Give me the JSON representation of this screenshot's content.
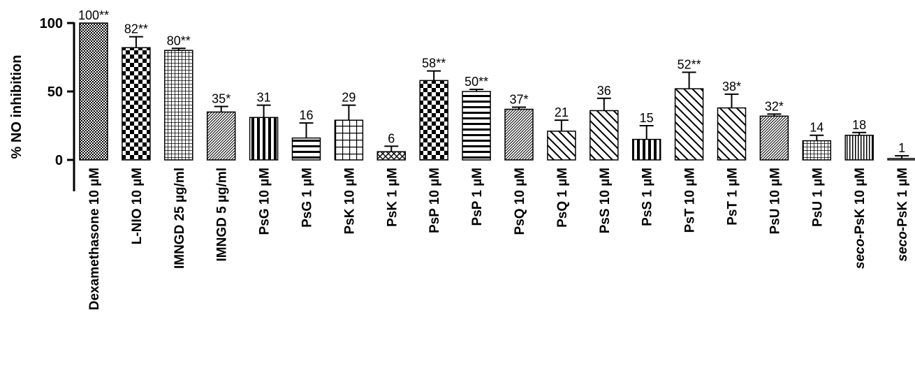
{
  "chart_data": {
    "type": "bar",
    "ylabel": "% NO inhibition",
    "xlabel": "",
    "title": "",
    "ylim": [
      -22,
      103
    ],
    "yticks": [
      0,
      50,
      100
    ],
    "grid": false,
    "legend": "none",
    "categories": [
      {
        "text": "Dexamethasone  10 µM",
        "italic_prefix": ""
      },
      {
        "text": "L-NIO  10 µM",
        "italic_prefix": ""
      },
      {
        "text": "IMNGD 25  µg/ml",
        "italic_prefix": ""
      },
      {
        "text": "IMNGD  5 µg/ml",
        "italic_prefix": ""
      },
      {
        "text": "PsG 10 µM",
        "italic_prefix": ""
      },
      {
        "text": "PsG  1 µM",
        "italic_prefix": ""
      },
      {
        "text": "PsK 10 µM",
        "italic_prefix": ""
      },
      {
        "text": "PsK  1 µM",
        "italic_prefix": ""
      },
      {
        "text": "PsP 10 µM",
        "italic_prefix": ""
      },
      {
        "text": "PsP  1 µM",
        "italic_prefix": ""
      },
      {
        "text": "PsQ 10 µM",
        "italic_prefix": ""
      },
      {
        "text": "PsQ  1 µM",
        "italic_prefix": ""
      },
      {
        "text": "PsS 10 µM",
        "italic_prefix": ""
      },
      {
        "text": "PsS  1 µM",
        "italic_prefix": ""
      },
      {
        "text": "PsT 10 µM",
        "italic_prefix": ""
      },
      {
        "text": "PsT  1 µM",
        "italic_prefix": ""
      },
      {
        "text": "PsU 10 µM",
        "italic_prefix": ""
      },
      {
        "text": "PsU  1 µM",
        "italic_prefix": ""
      },
      {
        "text": "-PsK 10 µM",
        "italic_prefix": "seco"
      },
      {
        "text": "-PsK  1 µM",
        "italic_prefix": "seco"
      }
    ],
    "values": [
      100,
      82,
      80,
      35,
      31,
      16,
      29,
      6,
      58,
      50,
      37,
      21,
      36,
      15,
      52,
      38,
      32,
      14,
      18,
      1
    ],
    "errors": [
      0,
      8,
      1.5,
      4,
      9,
      11,
      11,
      4,
      7,
      1.5,
      1.5,
      8,
      9,
      10,
      12,
      10,
      1.5,
      4,
      2,
      2
    ],
    "data_labels": [
      "100**",
      "82**",
      "80**",
      "35*",
      "31",
      "16",
      "29",
      "6",
      "58**",
      "50**",
      "37*",
      "21",
      "36",
      "15",
      "52**",
      "38*",
      "32*",
      "14",
      "18",
      "1"
    ],
    "patterns": [
      "fine-check",
      "check",
      "grid-fine",
      "diag-fine",
      "vertical",
      "horizontal",
      "grid",
      "crosshatch",
      "check",
      "horizontal",
      "diag-fine",
      "diag-left",
      "diag-left",
      "vertical",
      "diag-left",
      "diag-left",
      "diag-fine",
      "grid-fine",
      "vertical-fine",
      "none"
    ]
  }
}
